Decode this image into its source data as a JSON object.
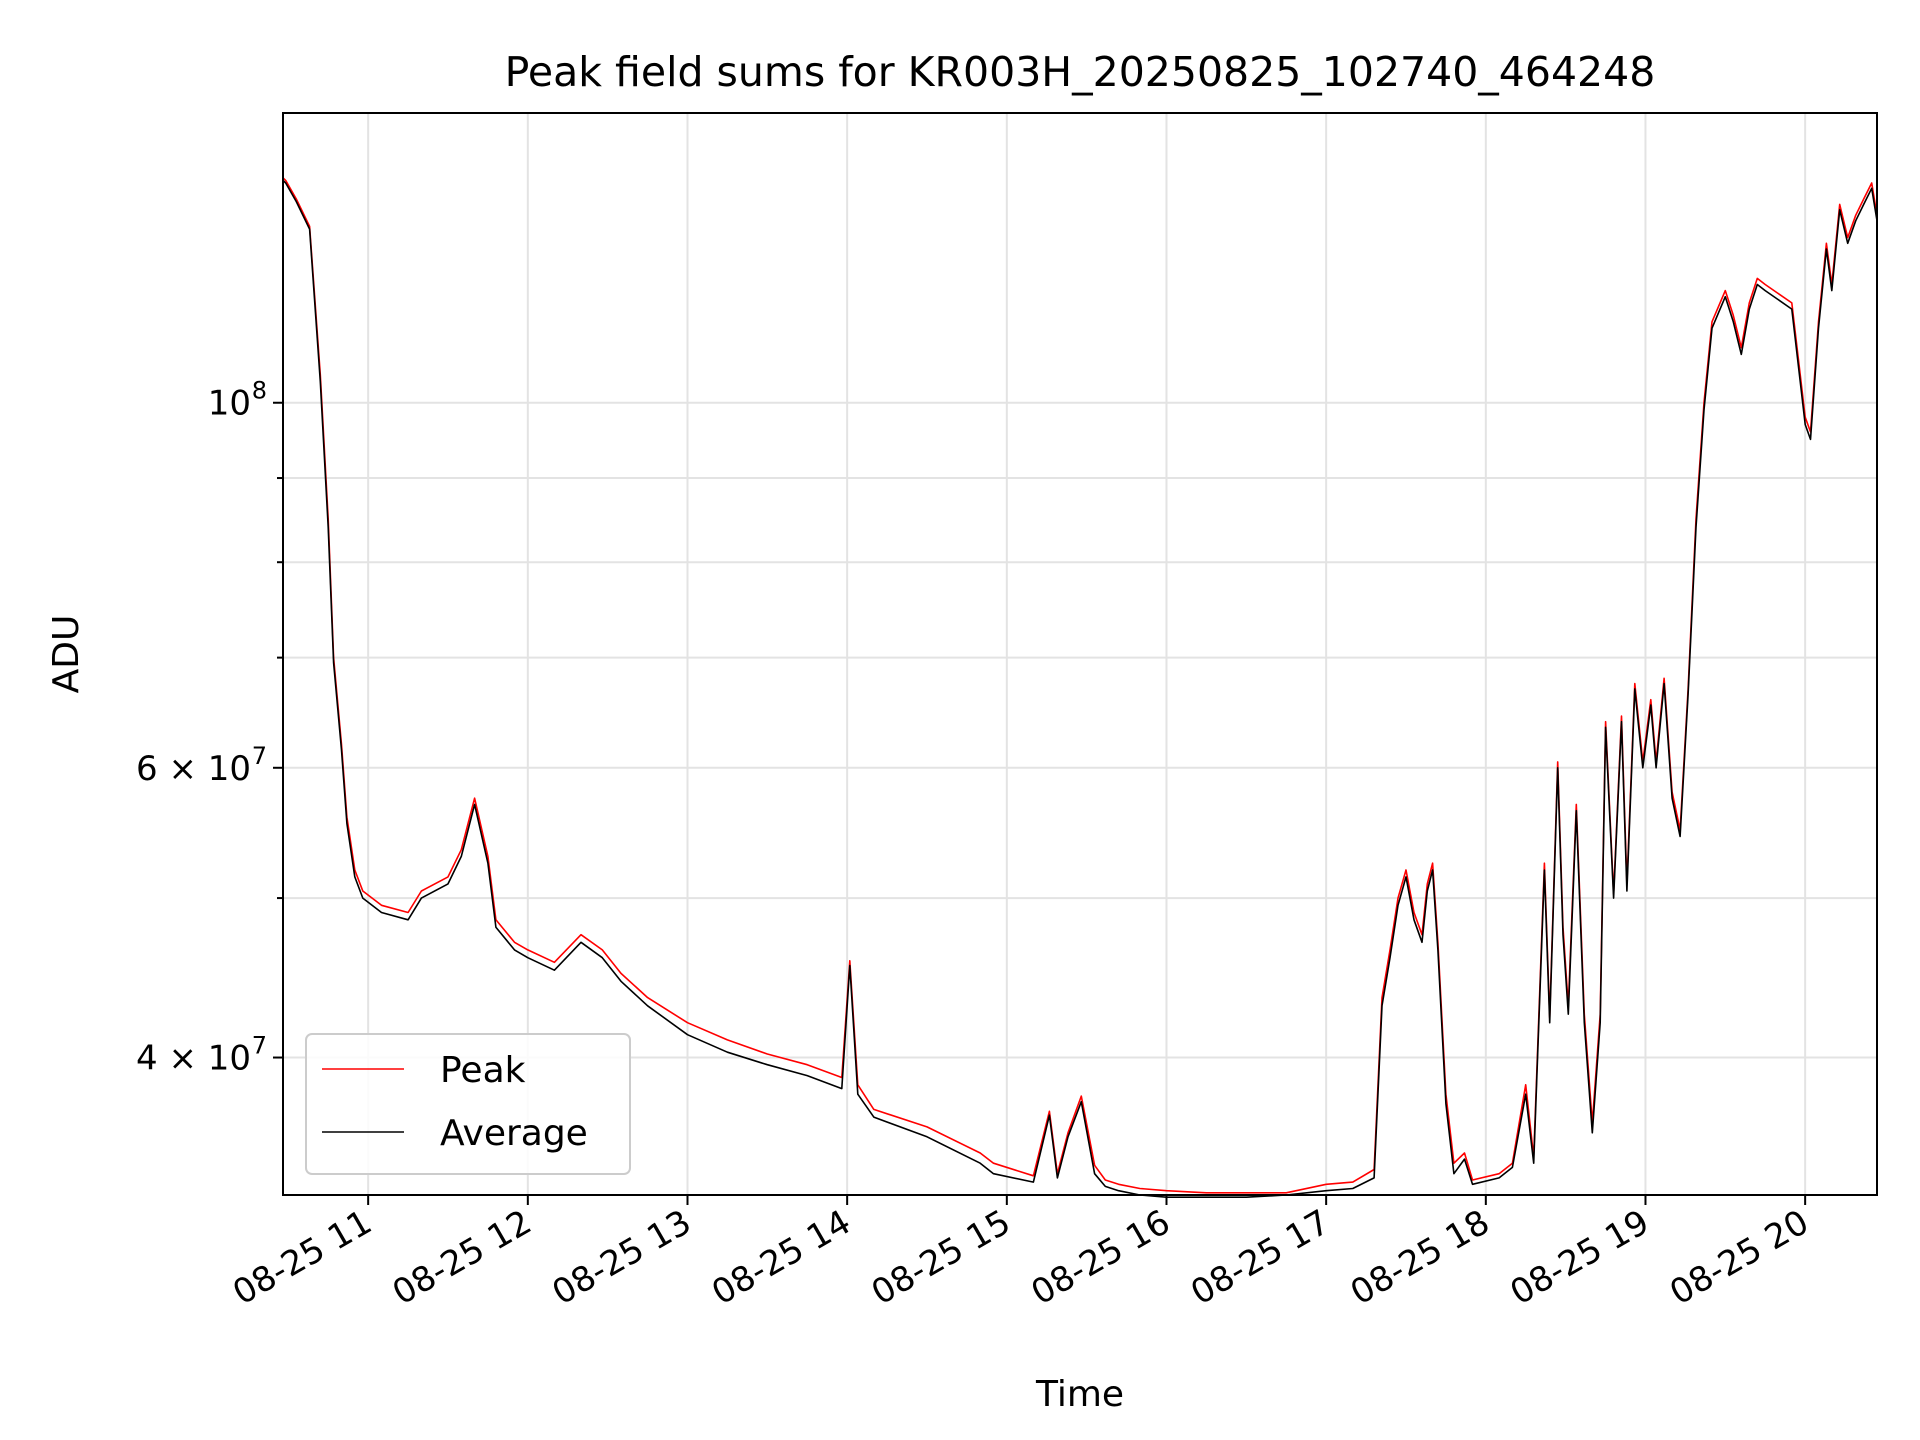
{
  "chart_data": {
    "type": "line",
    "title": "Peak field sums for KR003H_20250825_102740_464248",
    "xlabel": "Time",
    "ylabel": "ADU",
    "y_scale": "log",
    "ylim": [
      33000000,
      150000000
    ],
    "xlim": [
      "2025-08-25 10:28",
      "2025-08-25 20:27"
    ],
    "x_tick_values": [
      "2025-08-25 11:00",
      "2025-08-25 12:00",
      "2025-08-25 13:00",
      "2025-08-25 14:00",
      "2025-08-25 15:00",
      "2025-08-25 16:00",
      "2025-08-25 17:00",
      "2025-08-25 18:00",
      "2025-08-25 19:00",
      "2025-08-25 20:00"
    ],
    "x_tick_labels": [
      "08-25 11",
      "08-25 12",
      "08-25 13",
      "08-25 14",
      "08-25 15",
      "08-25 16",
      "08-25 17",
      "08-25 18",
      "08-25 19",
      "08-25 20"
    ],
    "y_major_ticks": [
      {
        "value": 40000000,
        "base": "4 × 10",
        "exp": "7"
      },
      {
        "value": 60000000,
        "base": "6 × 10",
        "exp": "7"
      },
      {
        "value": 100000000,
        "base": "10",
        "exp": "8"
      }
    ],
    "y_minor_ticks": [
      50000000,
      70000000,
      80000000,
      90000000
    ],
    "grid": true,
    "legend": {
      "placement": "lower-left"
    },
    "colors": {
      "peak": "#ff0000",
      "average": "#000000",
      "grid": "#e3e3e3"
    },
    "series": [
      {
        "name": "Peak",
        "color": "#ff0000",
        "x": [
          "2025-08-25 10:28",
          "2025-08-25 10:28",
          "2025-08-25 10:29",
          "2025-08-25 10:33",
          "2025-08-25 10:38",
          "2025-08-25 10:42",
          "2025-08-25 10:45",
          "2025-08-25 10:47",
          "2025-08-25 10:50",
          "2025-08-25 10:52",
          "2025-08-25 10:55",
          "2025-08-25 10:58",
          "2025-08-25 11:05",
          "2025-08-25 11:15",
          "2025-08-25 11:20",
          "2025-08-25 11:30",
          "2025-08-25 11:35",
          "2025-08-25 11:40",
          "2025-08-25 11:45",
          "2025-08-25 11:48",
          "2025-08-25 11:55",
          "2025-08-25 12:00",
          "2025-08-25 12:10",
          "2025-08-25 12:20",
          "2025-08-25 12:28",
          "2025-08-25 12:35",
          "2025-08-25 12:45",
          "2025-08-25 13:00",
          "2025-08-25 13:15",
          "2025-08-25 13:30",
          "2025-08-25 13:45",
          "2025-08-25 13:58",
          "2025-08-25 14:01",
          "2025-08-25 14:04",
          "2025-08-25 14:10",
          "2025-08-25 14:30",
          "2025-08-25 14:50",
          "2025-08-25 14:55",
          "2025-08-25 15:10",
          "2025-08-25 15:16",
          "2025-08-25 15:19",
          "2025-08-25 15:23",
          "2025-08-25 15:28",
          "2025-08-25 15:33",
          "2025-08-25 15:37",
          "2025-08-25 15:42",
          "2025-08-25 15:50",
          "2025-08-25 16:00",
          "2025-08-25 16:15",
          "2025-08-25 16:30",
          "2025-08-25 16:45",
          "2025-08-25 17:00",
          "2025-08-25 17:10",
          "2025-08-25 17:18",
          "2025-08-25 17:21",
          "2025-08-25 17:24",
          "2025-08-25 17:27",
          "2025-08-25 17:30",
          "2025-08-25 17:33",
          "2025-08-25 17:36",
          "2025-08-25 17:38",
          "2025-08-25 17:40",
          "2025-08-25 17:42",
          "2025-08-25 17:45",
          "2025-08-25 17:48",
          "2025-08-25 17:52",
          "2025-08-25 17:55",
          "2025-08-25 18:05",
          "2025-08-25 18:10",
          "2025-08-25 18:15",
          "2025-08-25 18:18",
          "2025-08-25 18:22",
          "2025-08-25 18:24",
          "2025-08-25 18:27",
          "2025-08-25 18:29",
          "2025-08-25 18:31",
          "2025-08-25 18:34",
          "2025-08-25 18:37",
          "2025-08-25 18:40",
          "2025-08-25 18:43",
          "2025-08-25 18:45",
          "2025-08-25 18:48",
          "2025-08-25 18:51",
          "2025-08-25 18:53",
          "2025-08-25 18:56",
          "2025-08-25 18:59",
          "2025-08-25 19:02",
          "2025-08-25 19:04",
          "2025-08-25 19:07",
          "2025-08-25 19:10",
          "2025-08-25 19:13",
          "2025-08-25 19:16",
          "2025-08-25 19:19",
          "2025-08-25 19:22",
          "2025-08-25 19:25",
          "2025-08-25 19:30",
          "2025-08-25 19:33",
          "2025-08-25 19:36",
          "2025-08-25 19:39",
          "2025-08-25 19:42",
          "2025-08-25 19:45",
          "2025-08-25 19:55",
          "2025-08-25 20:00",
          "2025-08-25 20:02",
          "2025-08-25 20:05",
          "2025-08-25 20:08",
          "2025-08-25 20:10",
          "2025-08-25 20:13",
          "2025-08-25 20:16",
          "2025-08-25 20:19",
          "2025-08-25 20:22",
          "2025-08-25 20:25",
          "2025-08-25 20:27"
        ],
        "values": [
          145000000,
          137000000,
          136500000,
          133000000,
          128000000,
          104000000,
          85000000,
          70000000,
          62000000,
          56000000,
          52000000,
          50500000,
          49500000,
          49000000,
          50500000,
          51500000,
          53500000,
          57500000,
          53000000,
          48500000,
          47000000,
          46500000,
          45700000,
          47500000,
          46500000,
          45000000,
          43500000,
          42000000,
          41000000,
          40200000,
          39600000,
          38900000,
          45800000,
          38500000,
          37200000,
          36300000,
          35000000,
          34500000,
          33900000,
          37100000,
          34000000,
          36000000,
          37900000,
          34400000,
          33700000,
          33500000,
          33300000,
          33200000,
          33100000,
          33100000,
          33100000,
          33500000,
          33600000,
          34200000,
          43500000,
          46500000,
          50000000,
          52000000,
          49000000,
          47500000,
          51000000,
          52500000,
          47000000,
          38000000,
          34500000,
          35000000,
          33700000,
          34000000,
          34500000,
          38500000,
          34800000,
          52500000,
          42300000,
          60500000,
          48000000,
          43000000,
          57000000,
          42500000,
          36500000,
          42500000,
          64000000,
          50300000,
          64500000,
          51000000,
          67500000,
          60500000,
          66000000,
          60500000,
          68000000,
          58000000,
          55000000,
          67000000,
          85000000,
          100000000,
          112000000,
          117000000,
          113000000,
          108000000,
          115000000,
          119000000,
          118000000,
          115000000,
          98000000,
          96000000,
          112000000,
          125000000,
          118000000,
          132000000,
          126000000,
          130000000,
          133000000,
          136000000,
          130000000
        ]
      },
      {
        "name": "Average",
        "color": "#000000",
        "x": [
          "2025-08-25 10:28",
          "2025-08-25 10:29",
          "2025-08-25 10:33",
          "2025-08-25 10:38",
          "2025-08-25 10:42",
          "2025-08-25 10:45",
          "2025-08-25 10:47",
          "2025-08-25 10:50",
          "2025-08-25 10:52",
          "2025-08-25 10:55",
          "2025-08-25 10:58",
          "2025-08-25 11:05",
          "2025-08-25 11:15",
          "2025-08-25 11:20",
          "2025-08-25 11:30",
          "2025-08-25 11:35",
          "2025-08-25 11:40",
          "2025-08-25 11:45",
          "2025-08-25 11:48",
          "2025-08-25 11:55",
          "2025-08-25 12:00",
          "2025-08-25 12:10",
          "2025-08-25 12:20",
          "2025-08-25 12:28",
          "2025-08-25 12:35",
          "2025-08-25 12:45",
          "2025-08-25 13:00",
          "2025-08-25 13:15",
          "2025-08-25 13:30",
          "2025-08-25 13:45",
          "2025-08-25 13:58",
          "2025-08-25 14:01",
          "2025-08-25 14:04",
          "2025-08-25 14:10",
          "2025-08-25 14:30",
          "2025-08-25 14:50",
          "2025-08-25 14:55",
          "2025-08-25 15:10",
          "2025-08-25 15:16",
          "2025-08-25 15:19",
          "2025-08-25 15:23",
          "2025-08-25 15:28",
          "2025-08-25 15:33",
          "2025-08-25 15:37",
          "2025-08-25 15:42",
          "2025-08-25 15:50",
          "2025-08-25 16:00",
          "2025-08-25 16:15",
          "2025-08-25 16:30",
          "2025-08-25 16:45",
          "2025-08-25 17:00",
          "2025-08-25 17:10",
          "2025-08-25 17:18",
          "2025-08-25 17:21",
          "2025-08-25 17:24",
          "2025-08-25 17:27",
          "2025-08-25 17:30",
          "2025-08-25 17:33",
          "2025-08-25 17:36",
          "2025-08-25 17:38",
          "2025-08-25 17:40",
          "2025-08-25 17:42",
          "2025-08-25 17:45",
          "2025-08-25 17:48",
          "2025-08-25 17:52",
          "2025-08-25 17:55",
          "2025-08-25 18:05",
          "2025-08-25 18:10",
          "2025-08-25 18:15",
          "2025-08-25 18:18",
          "2025-08-25 18:22",
          "2025-08-25 18:24",
          "2025-08-25 18:27",
          "2025-08-25 18:29",
          "2025-08-25 18:31",
          "2025-08-25 18:34",
          "2025-08-25 18:37",
          "2025-08-25 18:40",
          "2025-08-25 18:43",
          "2025-08-25 18:45",
          "2025-08-25 18:48",
          "2025-08-25 18:51",
          "2025-08-25 18:53",
          "2025-08-25 18:56",
          "2025-08-25 18:59",
          "2025-08-25 19:02",
          "2025-08-25 19:04",
          "2025-08-25 19:07",
          "2025-08-25 19:10",
          "2025-08-25 19:13",
          "2025-08-25 19:16",
          "2025-08-25 19:19",
          "2025-08-25 19:22",
          "2025-08-25 19:25",
          "2025-08-25 19:30",
          "2025-08-25 19:33",
          "2025-08-25 19:36",
          "2025-08-25 19:39",
          "2025-08-25 19:42",
          "2025-08-25 19:45",
          "2025-08-25 19:55",
          "2025-08-25 20:00",
          "2025-08-25 20:02",
          "2025-08-25 20:05",
          "2025-08-25 20:08",
          "2025-08-25 20:10",
          "2025-08-25 20:13",
          "2025-08-25 20:16",
          "2025-08-25 20:19",
          "2025-08-25 20:22",
          "2025-08-25 20:25",
          "2025-08-25 20:27"
        ],
        "values": [
          136500000,
          136000000,
          132500000,
          127500000,
          103000000,
          84000000,
          69500000,
          61500000,
          55500000,
          51500000,
          50000000,
          49000000,
          48500000,
          50000000,
          51000000,
          53000000,
          57000000,
          52500000,
          48000000,
          46500000,
          46000000,
          45200000,
          47000000,
          46000000,
          44500000,
          43000000,
          41300000,
          40300000,
          39600000,
          39000000,
          38300000,
          45500000,
          38000000,
          36800000,
          35800000,
          34500000,
          34000000,
          33600000,
          36900000,
          33800000,
          35800000,
          37600000,
          34000000,
          33400000,
          33200000,
          33000000,
          32900000,
          32900000,
          32900000,
          33000000,
          33200000,
          33300000,
          33800000,
          43000000,
          46000000,
          49500000,
          51500000,
          48500000,
          47000000,
          50500000,
          52000000,
          46500000,
          37500000,
          34000000,
          34700000,
          33500000,
          33800000,
          34300000,
          38000000,
          34500000,
          52000000,
          42000000,
          60000000,
          47500000,
          42500000,
          56500000,
          42000000,
          36000000,
          42000000,
          63500000,
          50000000,
          64000000,
          50500000,
          67000000,
          60000000,
          65500000,
          60000000,
          67500000,
          57500000,
          54500000,
          66500000,
          84000000,
          99000000,
          111000000,
          116000000,
          112000000,
          107000000,
          114000000,
          118000000,
          117000000,
          114000000,
          97000000,
          95000000,
          111000000,
          124000000,
          117000000,
          131000000,
          125000000,
          129000000,
          132000000,
          135000000,
          129000000
        ]
      }
    ]
  }
}
